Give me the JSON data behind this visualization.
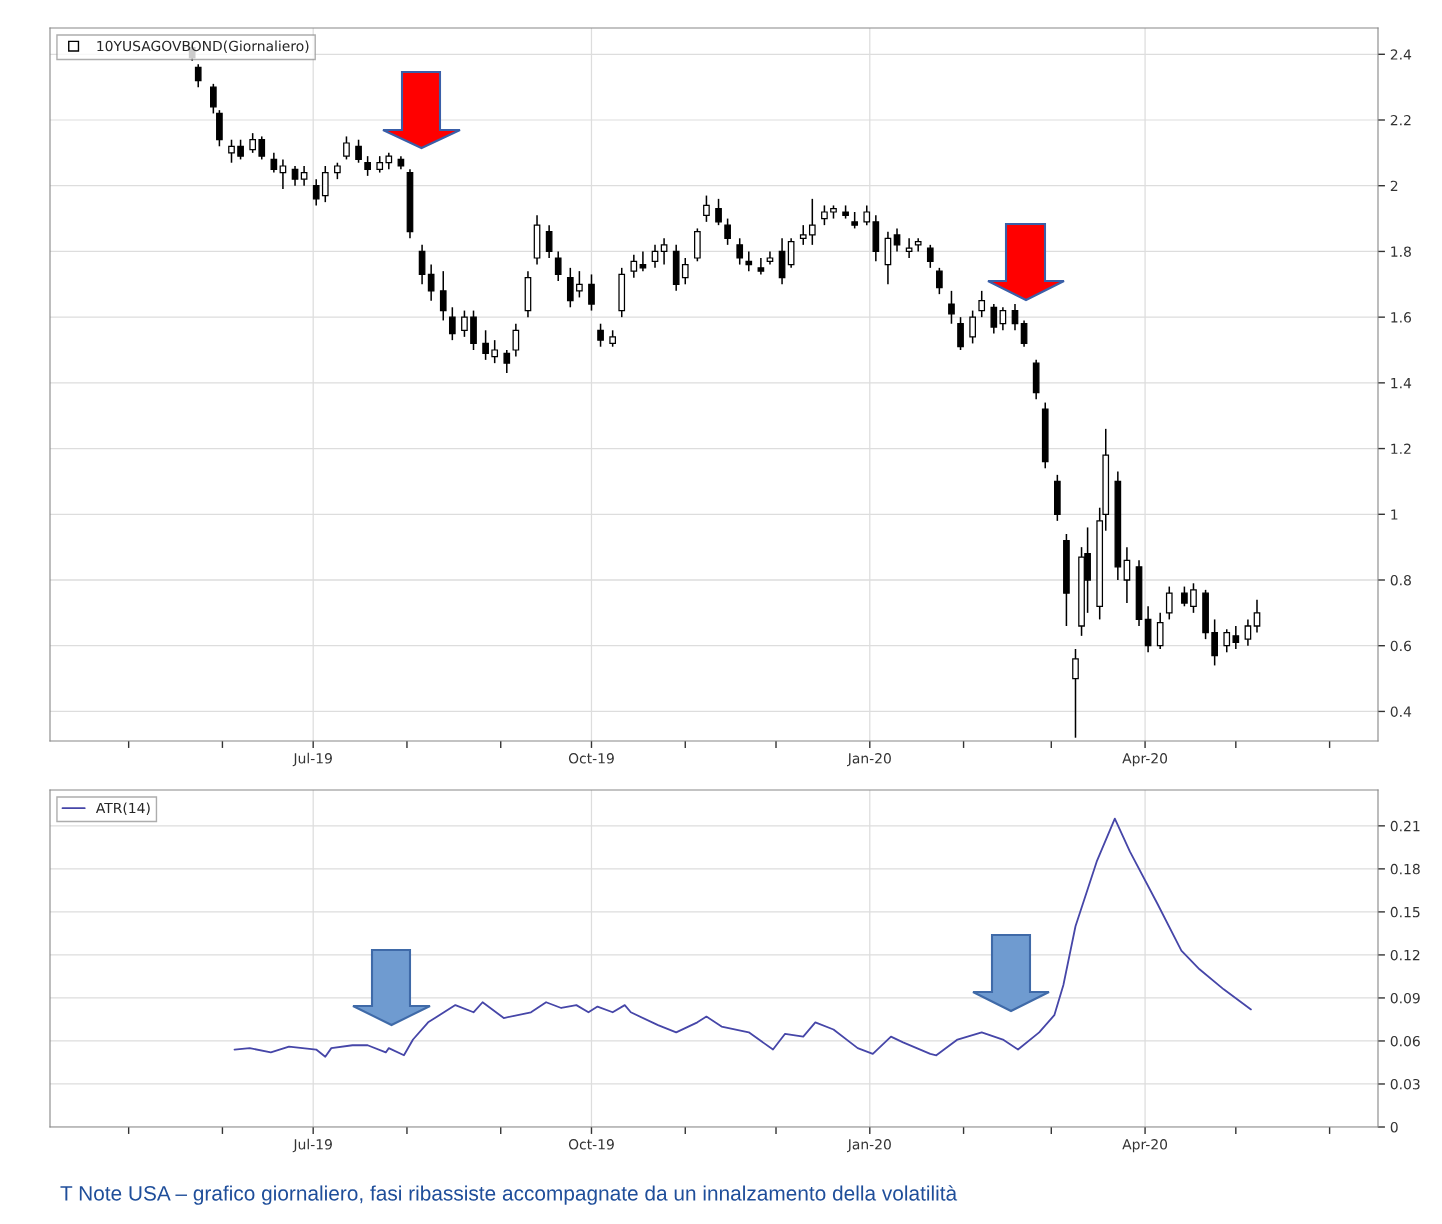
{
  "chart_data": [
    {
      "type": "candlestick",
      "legend": "top left",
      "grid": true,
      "marker": "square",
      "xlim": [
        "2019-04-05",
        "2020-06-17"
      ],
      "xticks": [
        {
          "value": "2019-05-01",
          "label": null
        },
        {
          "value": "2019-06-01",
          "label": null
        },
        {
          "value": "2019-07-01",
          "label": "Jul-19"
        },
        {
          "value": "2019-08-01",
          "label": null
        },
        {
          "value": "2019-09-01",
          "label": null
        },
        {
          "value": "2019-10-01",
          "label": "Oct-19"
        },
        {
          "value": "2019-11-01",
          "label": null
        },
        {
          "value": "2019-12-01",
          "label": null
        },
        {
          "value": "2020-01-01",
          "label": "Jan-20"
        },
        {
          "value": "2020-02-01",
          "label": null
        },
        {
          "value": "2020-03-01",
          "label": null
        },
        {
          "value": "2020-04-01",
          "label": "Apr-20"
        },
        {
          "value": "2020-05-01",
          "label": null
        },
        {
          "value": "2020-06-01",
          "label": null
        }
      ],
      "ylim": [
        0.31,
        2.48
      ],
      "yticks": [
        0.4,
        0.6,
        0.8,
        1,
        1.2,
        1.4,
        1.6,
        1.8,
        2,
        2.2,
        2.4
      ],
      "series": [
        {
          "name": "10YUSAGOVBOND(Giornaliero)",
          "color": "#000000",
          "x": [
            "2019-05-22",
            "2019-05-24",
            "2019-05-29",
            "2019-05-31",
            "2019-06-04",
            "2019-06-07",
            "2019-06-11",
            "2019-06-14",
            "2019-06-18",
            "2019-06-21",
            "2019-06-25",
            "2019-06-28",
            "2019-07-02",
            "2019-07-05",
            "2019-07-09",
            "2019-07-12",
            "2019-07-16",
            "2019-07-19",
            "2019-07-23",
            "2019-07-26",
            "2019-07-30",
            "2019-08-02",
            "2019-08-06",
            "2019-08-09",
            "2019-08-13",
            "2019-08-16",
            "2019-08-20",
            "2019-08-23",
            "2019-08-27",
            "2019-08-30",
            "2019-09-03",
            "2019-09-06",
            "2019-09-10",
            "2019-09-13",
            "2019-09-17",
            "2019-09-20",
            "2019-09-24",
            "2019-09-27",
            "2019-10-01",
            "2019-10-04",
            "2019-10-08",
            "2019-10-11",
            "2019-10-15",
            "2019-10-18",
            "2019-10-22",
            "2019-10-25",
            "2019-10-29",
            "2019-11-01",
            "2019-11-05",
            "2019-11-08",
            "2019-11-12",
            "2019-11-15",
            "2019-11-19",
            "2019-11-22",
            "2019-11-26",
            "2019-11-29",
            "2019-12-03",
            "2019-12-06",
            "2019-12-10",
            "2019-12-13",
            "2019-12-17",
            "2019-12-20",
            "2019-12-24",
            "2019-12-27",
            "2019-12-31",
            "2020-01-03",
            "2020-01-07",
            "2020-01-10",
            "2020-01-14",
            "2020-01-17",
            "2020-01-21",
            "2020-01-24",
            "2020-01-28",
            "2020-01-31",
            "2020-02-04",
            "2020-02-07",
            "2020-02-11",
            "2020-02-14",
            "2020-02-18",
            "2020-02-21",
            "2020-02-25",
            "2020-02-28",
            "2020-03-03",
            "2020-03-06",
            "2020-03-09",
            "2020-03-11",
            "2020-03-13",
            "2020-03-17",
            "2020-03-19",
            "2020-03-23",
            "2020-03-26",
            "2020-03-30",
            "2020-04-02",
            "2020-04-06",
            "2020-04-09",
            "2020-04-14",
            "2020-04-17",
            "2020-04-21",
            "2020-04-24",
            "2020-04-28",
            "2020-05-01",
            "2020-05-05",
            "2020-05-08"
          ],
          "ohlc": [
            [
              2.42,
              2.44,
              2.38,
              2.39
            ],
            [
              2.36,
              2.37,
              2.3,
              2.32
            ],
            [
              2.3,
              2.31,
              2.22,
              2.24
            ],
            [
              2.22,
              2.23,
              2.12,
              2.14
            ],
            [
              2.1,
              2.14,
              2.07,
              2.12
            ],
            [
              2.12,
              2.14,
              2.08,
              2.09
            ],
            [
              2.11,
              2.16,
              2.1,
              2.14
            ],
            [
              2.14,
              2.15,
              2.08,
              2.09
            ],
            [
              2.08,
              2.1,
              2.04,
              2.05
            ],
            [
              2.04,
              2.08,
              1.99,
              2.06
            ],
            [
              2.05,
              2.06,
              2.0,
              2.02
            ],
            [
              2.02,
              2.06,
              2.0,
              2.04
            ],
            [
              2.0,
              2.02,
              1.94,
              1.96
            ],
            [
              1.97,
              2.06,
              1.95,
              2.04
            ],
            [
              2.04,
              2.07,
              2.02,
              2.06
            ],
            [
              2.09,
              2.15,
              2.08,
              2.13
            ],
            [
              2.12,
              2.14,
              2.07,
              2.08
            ],
            [
              2.07,
              2.09,
              2.03,
              2.05
            ],
            [
              2.05,
              2.09,
              2.04,
              2.07
            ],
            [
              2.07,
              2.1,
              2.05,
              2.09
            ],
            [
              2.08,
              2.09,
              2.05,
              2.06
            ],
            [
              2.04,
              2.05,
              1.84,
              1.86
            ],
            [
              1.8,
              1.82,
              1.7,
              1.73
            ],
            [
              1.73,
              1.76,
              1.65,
              1.68
            ],
            [
              1.68,
              1.74,
              1.59,
              1.62
            ],
            [
              1.6,
              1.63,
              1.53,
              1.55
            ],
            [
              1.56,
              1.62,
              1.54,
              1.6
            ],
            [
              1.6,
              1.62,
              1.5,
              1.52
            ],
            [
              1.52,
              1.56,
              1.47,
              1.49
            ],
            [
              1.48,
              1.53,
              1.46,
              1.5
            ],
            [
              1.49,
              1.5,
              1.43,
              1.46
            ],
            [
              1.5,
              1.58,
              1.48,
              1.56
            ],
            [
              1.62,
              1.74,
              1.6,
              1.72
            ],
            [
              1.78,
              1.91,
              1.76,
              1.88
            ],
            [
              1.86,
              1.88,
              1.78,
              1.8
            ],
            [
              1.78,
              1.8,
              1.71,
              1.73
            ],
            [
              1.72,
              1.75,
              1.63,
              1.65
            ],
            [
              1.68,
              1.74,
              1.66,
              1.7
            ],
            [
              1.7,
              1.73,
              1.62,
              1.64
            ],
            [
              1.56,
              1.58,
              1.51,
              1.53
            ],
            [
              1.52,
              1.56,
              1.51,
              1.54
            ],
            [
              1.62,
              1.75,
              1.6,
              1.73
            ],
            [
              1.74,
              1.79,
              1.72,
              1.77
            ],
            [
              1.76,
              1.8,
              1.74,
              1.75
            ],
            [
              1.77,
              1.82,
              1.75,
              1.8
            ],
            [
              1.8,
              1.84,
              1.76,
              1.82
            ],
            [
              1.8,
              1.82,
              1.68,
              1.7
            ],
            [
              1.72,
              1.78,
              1.7,
              1.76
            ],
            [
              1.78,
              1.87,
              1.77,
              1.86
            ],
            [
              1.91,
              1.97,
              1.89,
              1.94
            ],
            [
              1.93,
              1.96,
              1.88,
              1.89
            ],
            [
              1.88,
              1.9,
              1.82,
              1.84
            ],
            [
              1.82,
              1.84,
              1.76,
              1.78
            ],
            [
              1.77,
              1.8,
              1.74,
              1.76
            ],
            [
              1.75,
              1.78,
              1.73,
              1.74
            ],
            [
              1.77,
              1.8,
              1.76,
              1.78
            ],
            [
              1.8,
              1.84,
              1.7,
              1.72
            ],
            [
              1.76,
              1.84,
              1.75,
              1.83
            ],
            [
              1.84,
              1.88,
              1.82,
              1.85
            ],
            [
              1.85,
              1.96,
              1.82,
              1.88
            ],
            [
              1.9,
              1.94,
              1.88,
              1.92
            ],
            [
              1.92,
              1.94,
              1.9,
              1.93
            ],
            [
              1.92,
              1.94,
              1.9,
              1.91
            ],
            [
              1.89,
              1.92,
              1.87,
              1.88
            ],
            [
              1.89,
              1.94,
              1.88,
              1.92
            ],
            [
              1.89,
              1.91,
              1.77,
              1.8
            ],
            [
              1.76,
              1.86,
              1.7,
              1.84
            ],
            [
              1.85,
              1.87,
              1.8,
              1.82
            ],
            [
              1.8,
              1.84,
              1.78,
              1.81
            ],
            [
              1.82,
              1.84,
              1.8,
              1.83
            ],
            [
              1.81,
              1.82,
              1.75,
              1.77
            ],
            [
              1.74,
              1.75,
              1.67,
              1.69
            ],
            [
              1.64,
              1.68,
              1.58,
              1.61
            ],
            [
              1.58,
              1.6,
              1.5,
              1.51
            ],
            [
              1.54,
              1.62,
              1.52,
              1.6
            ],
            [
              1.62,
              1.68,
              1.6,
              1.65
            ],
            [
              1.63,
              1.64,
              1.55,
              1.57
            ],
            [
              1.58,
              1.63,
              1.56,
              1.62
            ],
            [
              1.62,
              1.64,
              1.56,
              1.58
            ],
            [
              1.58,
              1.59,
              1.51,
              1.52
            ],
            [
              1.46,
              1.47,
              1.35,
              1.37
            ],
            [
              1.32,
              1.34,
              1.14,
              1.16
            ],
            [
              1.1,
              1.12,
              0.98,
              1.0
            ],
            [
              0.92,
              0.94,
              0.66,
              0.76
            ],
            [
              0.5,
              0.59,
              0.32,
              0.56
            ],
            [
              0.66,
              0.9,
              0.63,
              0.87
            ],
            [
              0.88,
              0.96,
              0.7,
              0.8
            ],
            [
              0.72,
              1.02,
              0.68,
              0.98
            ],
            [
              1.0,
              1.26,
              0.95,
              1.18
            ],
            [
              1.1,
              1.13,
              0.8,
              0.84
            ],
            [
              0.8,
              0.9,
              0.73,
              0.86
            ],
            [
              0.84,
              0.86,
              0.66,
              0.68
            ],
            [
              0.68,
              0.72,
              0.58,
              0.6
            ],
            [
              0.6,
              0.7,
              0.59,
              0.67
            ],
            [
              0.7,
              0.78,
              0.68,
              0.76
            ],
            [
              0.76,
              0.78,
              0.72,
              0.73
            ],
            [
              0.72,
              0.79,
              0.7,
              0.77
            ],
            [
              0.76,
              0.77,
              0.62,
              0.64
            ],
            [
              0.64,
              0.68,
              0.54,
              0.57
            ],
            [
              0.6,
              0.65,
              0.58,
              0.64
            ],
            [
              0.63,
              0.66,
              0.59,
              0.61
            ],
            [
              0.62,
              0.68,
              0.6,
              0.66
            ],
            [
              0.66,
              0.74,
              0.64,
              0.7
            ]
          ]
        }
      ]
    },
    {
      "type": "line",
      "legend": "top left",
      "grid": true,
      "line_style": "solid",
      "xlim": [
        "2019-04-05",
        "2020-06-17"
      ],
      "xticks": [
        {
          "value": "2019-05-01",
          "label": null
        },
        {
          "value": "2019-06-01",
          "label": null
        },
        {
          "value": "2019-07-01",
          "label": "Jul-19"
        },
        {
          "value": "2019-08-01",
          "label": null
        },
        {
          "value": "2019-09-01",
          "label": null
        },
        {
          "value": "2019-10-01",
          "label": "Oct-19"
        },
        {
          "value": "2019-11-01",
          "label": null
        },
        {
          "value": "2019-12-01",
          "label": null
        },
        {
          "value": "2020-01-01",
          "label": "Jan-20"
        },
        {
          "value": "2020-02-01",
          "label": null
        },
        {
          "value": "2020-03-01",
          "label": null
        },
        {
          "value": "2020-04-01",
          "label": "Apr-20"
        },
        {
          "value": "2020-05-01",
          "label": null
        },
        {
          "value": "2020-06-01",
          "label": null
        }
      ],
      "ylim": [
        0,
        0.235
      ],
      "yticks": [
        0,
        0.03,
        0.06,
        0.09,
        0.12,
        0.15,
        0.18,
        0.21
      ],
      "annotations": [
        "T Note USA – grafico giornaliero, fasi ribassiste accompagnate da un innalzamento della volatilità"
      ],
      "series": [
        {
          "name": "ATR(14)",
          "color": "#4646a8",
          "x": [
            "2019-06-05",
            "2019-06-10",
            "2019-06-17",
            "2019-06-23",
            "2019-07-02",
            "2019-07-05",
            "2019-07-07",
            "2019-07-14",
            "2019-07-19",
            "2019-07-25",
            "2019-07-26",
            "2019-07-31",
            "2019-08-03",
            "2019-08-08",
            "2019-08-17",
            "2019-08-23",
            "2019-08-26",
            "2019-09-02",
            "2019-09-11",
            "2019-09-16",
            "2019-09-21",
            "2019-09-26",
            "2019-09-30",
            "2019-10-03",
            "2019-10-08",
            "2019-10-12",
            "2019-10-14",
            "2019-10-23",
            "2019-10-29",
            "2019-11-05",
            "2019-11-08",
            "2019-11-13",
            "2019-11-22",
            "2019-11-30",
            "2019-12-04",
            "2019-12-10",
            "2019-12-14",
            "2019-12-20",
            "2019-12-28",
            "2020-01-02",
            "2020-01-08",
            "2020-01-12",
            "2020-01-21",
            "2020-01-23",
            "2020-01-30",
            "2020-02-07",
            "2020-02-14",
            "2020-02-19",
            "2020-02-26",
            "2020-03-02",
            "2020-03-05",
            "2020-03-09",
            "2020-03-16",
            "2020-03-22",
            "2020-03-27",
            "2020-04-05",
            "2020-04-13",
            "2020-04-19",
            "2020-04-27",
            "2020-05-06"
          ],
          "values": [
            0.054,
            0.055,
            0.052,
            0.056,
            0.054,
            0.049,
            0.055,
            0.057,
            0.057,
            0.052,
            0.055,
            0.05,
            0.061,
            0.073,
            0.085,
            0.08,
            0.087,
            0.076,
            0.08,
            0.087,
            0.083,
            0.085,
            0.08,
            0.084,
            0.08,
            0.085,
            0.08,
            0.071,
            0.066,
            0.073,
            0.077,
            0.07,
            0.066,
            0.054,
            0.065,
            0.063,
            0.073,
            0.068,
            0.055,
            0.051,
            0.063,
            0.059,
            0.051,
            0.05,
            0.061,
            0.066,
            0.061,
            0.054,
            0.066,
            0.078,
            0.099,
            0.14,
            0.185,
            0.215,
            0.192,
            0.156,
            0.123,
            0.11,
            0.096,
            0.082
          ]
        }
      ]
    }
  ]
}
